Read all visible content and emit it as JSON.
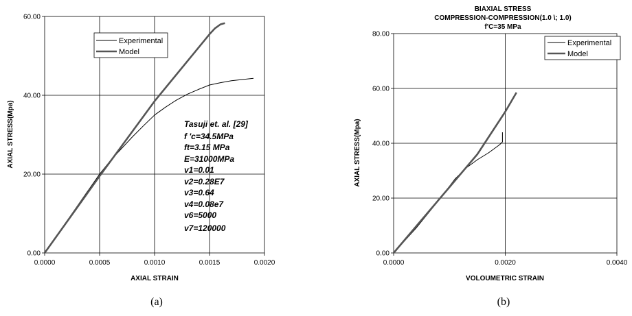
{
  "chart_data": [
    {
      "type": "line",
      "caption": "(a)",
      "title": "",
      "xlabel": "AXIAL STRAIN",
      "ylabel": "AXIAL STRESS(Mpa)",
      "xlim": [
        0,
        0.002
      ],
      "ylim": [
        0,
        60
      ],
      "xticks": [
        "0.0000",
        "0.0005",
        "0.0010",
        "0.0015",
        "0.0020"
      ],
      "yticks": [
        "0.00",
        "20.00",
        "40.00",
        "60.00"
      ],
      "grid": "major lines on x and y",
      "legend_position": "top-left",
      "series": [
        {
          "name": "Experimental",
          "x": [
            0,
            0.0002,
            0.0004,
            0.0005,
            0.0006,
            0.0008,
            0.0009,
            0.001,
            0.0011,
            0.0012,
            0.0013,
            0.0014,
            0.0015,
            0.0016,
            0.0017,
            0.0018,
            0.0019
          ],
          "y": [
            0,
            8,
            16,
            20,
            23.5,
            29.5,
            32.3,
            35,
            37,
            38.8,
            40.3,
            41.5,
            42.6,
            43.2,
            43.7,
            44,
            44.3
          ]
        },
        {
          "name": "Model",
          "x": [
            0,
            0.0005,
            0.001,
            0.0015,
            0.00155,
            0.0016,
            0.00164
          ],
          "y": [
            0,
            19.5,
            38.5,
            55.5,
            57,
            58,
            58.3
          ]
        }
      ],
      "annotation": [
        "Tasuji et. al. [29]",
        "f 'c=34.5MPa",
        "ft=3.15 MPa",
        "E=31000MPa",
        "v1=0.01",
        "v2=0.28E7",
        "v3=0.64",
        "v4=0.08e7",
        "v6=5000",
        "v7=120000"
      ]
    },
    {
      "type": "line",
      "caption": "(b)",
      "title": [
        "BIAXIAL STRESS",
        "COMPRESSION-COMPRESSION(1.0 \\; 1.0)",
        "f'C=35 MPa"
      ],
      "xlabel": "VOLOUMETRIC STRAIN",
      "ylabel": "AXIAL STRESS(Mpa)",
      "xlim": [
        0,
        0.004
      ],
      "ylim": [
        0,
        80
      ],
      "xticks": [
        "0.0000",
        "0.0020",
        "0.0040"
      ],
      "yticks": [
        "0.00",
        "20.00",
        "40.00",
        "60.00",
        "80.00"
      ],
      "grid": "major lines on x and y",
      "legend_position": "top-right",
      "series": [
        {
          "name": "Experimental",
          "x": [
            0,
            0.0004,
            0.0008,
            0.0011,
            0.0013,
            0.0015,
            0.0017,
            0.0018,
            0.0019,
            0.00195,
            0.00195
          ],
          "y": [
            0,
            9,
            19,
            27,
            31,
            34,
            36.5,
            38,
            39.5,
            40.5,
            44
          ]
        },
        {
          "name": "Model",
          "x": [
            0,
            0.0005,
            0.001,
            0.0015,
            0.002,
            0.0022
          ],
          "y": [
            0,
            12,
            24,
            36,
            51.5,
            58.5
          ]
        }
      ]
    }
  ]
}
